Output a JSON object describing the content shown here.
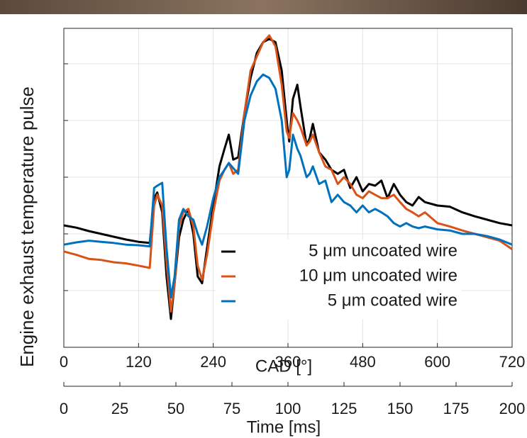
{
  "chart_data": {
    "type": "line",
    "xlabel": "CAD [°]",
    "ylabel": "Engine exhaust temperature pulse",
    "x2label": "Time [ms]",
    "xlim": [
      0,
      720
    ],
    "xticks": [
      0,
      120,
      240,
      360,
      480,
      600,
      720
    ],
    "x2lim": [
      0,
      200
    ],
    "x2ticks": [
      0,
      25,
      50,
      75,
      100,
      125,
      150,
      175,
      200
    ],
    "ylim": [
      0,
      5.625
    ],
    "yticks": [
      1,
      2,
      3,
      4,
      5
    ],
    "grid": true,
    "x": [
      0,
      20,
      40,
      60,
      80,
      100,
      120,
      138,
      145,
      150,
      158,
      165,
      172,
      178,
      185,
      192,
      200,
      208,
      215,
      222,
      230,
      240,
      250,
      258,
      265,
      272,
      280,
      290,
      300,
      310,
      320,
      330,
      340,
      350,
      358,
      362,
      368,
      375,
      380,
      390,
      395,
      400,
      410,
      420,
      430,
      440,
      450,
      460,
      470,
      480,
      490,
      500,
      510,
      520,
      530,
      540,
      550,
      560,
      570,
      580,
      600,
      620,
      640,
      660,
      680,
      700,
      720
    ],
    "series": [
      {
        "name": "5 μm uncoated wire",
        "color": "#000000",
        "values": [
          2.15,
          2.11,
          2.05,
          2.0,
          1.95,
          1.9,
          1.86,
          1.84,
          2.63,
          2.73,
          2.38,
          1.25,
          0.5,
          1.13,
          1.94,
          2.25,
          2.44,
          2.0,
          1.25,
          1.13,
          1.75,
          2.5,
          3.19,
          3.5,
          3.75,
          3.31,
          3.35,
          4.13,
          4.75,
          5.19,
          5.38,
          5.44,
          5.38,
          4.88,
          4.0,
          3.63,
          4.38,
          4.63,
          4.25,
          3.56,
          3.69,
          3.94,
          3.44,
          3.31,
          3.13,
          3.06,
          3.13,
          2.81,
          3.0,
          2.75,
          2.88,
          2.85,
          2.94,
          2.63,
          2.88,
          2.69,
          2.56,
          2.5,
          2.65,
          2.56,
          2.5,
          2.48,
          2.38,
          2.31,
          2.25,
          2.19,
          2.15
        ]
      },
      {
        "name": "10 μm uncoated wire",
        "color": "#d95319",
        "values": [
          1.69,
          1.63,
          1.56,
          1.54,
          1.5,
          1.48,
          1.44,
          1.4,
          2.5,
          2.69,
          2.5,
          1.5,
          0.63,
          1.13,
          2.13,
          2.38,
          2.44,
          2.13,
          1.44,
          1.19,
          1.63,
          2.38,
          2.94,
          3.13,
          3.25,
          3.06,
          3.13,
          4.13,
          4.88,
          5.13,
          5.38,
          5.5,
          5.31,
          4.63,
          3.81,
          3.69,
          4.13,
          4.0,
          3.88,
          3.56,
          3.63,
          3.75,
          3.44,
          3.19,
          3.13,
          2.88,
          3.0,
          2.88,
          2.69,
          2.63,
          2.75,
          2.69,
          2.63,
          2.63,
          2.69,
          2.56,
          2.44,
          2.38,
          2.31,
          2.38,
          2.19,
          2.13,
          2.06,
          2.0,
          1.94,
          1.88,
          1.73
        ]
      },
      {
        "name": "5 μm coated wire",
        "color": "#0072bd",
        "values": [
          1.81,
          1.85,
          1.88,
          1.86,
          1.84,
          1.81,
          1.8,
          1.78,
          2.81,
          2.85,
          2.9,
          1.75,
          0.88,
          1.25,
          2.25,
          2.44,
          2.31,
          2.25,
          2.0,
          1.81,
          2.13,
          2.63,
          3.0,
          3.13,
          3.25,
          3.16,
          3.06,
          4.0,
          4.44,
          4.69,
          4.81,
          4.75,
          4.56,
          4.0,
          3.0,
          3.13,
          3.75,
          3.5,
          3.38,
          3.0,
          3.06,
          3.19,
          2.88,
          2.94,
          2.56,
          2.69,
          2.56,
          2.5,
          2.38,
          2.5,
          2.38,
          2.44,
          2.38,
          2.31,
          2.19,
          2.13,
          2.19,
          2.13,
          2.1,
          2.13,
          2.08,
          2.06,
          2.0,
          2.0,
          1.96,
          1.9,
          1.81
        ]
      }
    ]
  }
}
